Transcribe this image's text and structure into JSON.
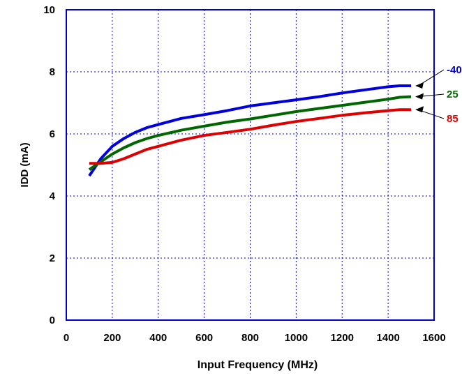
{
  "chart_data": {
    "type": "line",
    "title": "",
    "xlabel": "Input  Frequency (MHz)",
    "ylabel": "IDD (mA)",
    "xlim": [
      0,
      1600
    ],
    "ylim": [
      0,
      10
    ],
    "x_ticks": [
      0,
      200,
      400,
      600,
      800,
      1000,
      1200,
      1400,
      1600
    ],
    "y_ticks": [
      0,
      2,
      4,
      6,
      8,
      10
    ],
    "x_tick_labels": [
      "0",
      "200",
      "400",
      "600",
      "800",
      "1000",
      "1200",
      "1400",
      "1600"
    ],
    "y_tick_labels": [
      "0",
      "2",
      "4",
      "6",
      "8",
      "10"
    ],
    "grid": true,
    "series": [
      {
        "name": "-40",
        "color": "#0000dd",
        "x": [
          100,
          150,
          200,
          250,
          300,
          350,
          400,
          500,
          600,
          700,
          800,
          900,
          1000,
          1100,
          1200,
          1300,
          1400,
          1450,
          1500
        ],
        "y": [
          4.65,
          5.2,
          5.6,
          5.85,
          6.05,
          6.2,
          6.3,
          6.5,
          6.62,
          6.75,
          6.9,
          7.0,
          7.1,
          7.2,
          7.32,
          7.42,
          7.52,
          7.55,
          7.55
        ]
      },
      {
        "name": "25",
        "color": "#006600",
        "x": [
          100,
          150,
          200,
          250,
          300,
          350,
          400,
          500,
          600,
          700,
          800,
          900,
          1000,
          1100,
          1200,
          1300,
          1400,
          1450,
          1500
        ],
        "y": [
          4.85,
          5.1,
          5.35,
          5.55,
          5.72,
          5.85,
          5.95,
          6.12,
          6.25,
          6.38,
          6.48,
          6.6,
          6.72,
          6.82,
          6.92,
          7.02,
          7.12,
          7.18,
          7.2
        ]
      },
      {
        "name": "85",
        "color": "#dd0000",
        "x": [
          100,
          150,
          200,
          250,
          300,
          350,
          400,
          500,
          600,
          700,
          800,
          900,
          1000,
          1100,
          1200,
          1300,
          1400,
          1450,
          1500
        ],
        "y": [
          5.05,
          5.05,
          5.08,
          5.2,
          5.35,
          5.5,
          5.6,
          5.8,
          5.95,
          6.05,
          6.15,
          6.28,
          6.4,
          6.5,
          6.6,
          6.68,
          6.75,
          6.78,
          6.78
        ]
      }
    ]
  }
}
